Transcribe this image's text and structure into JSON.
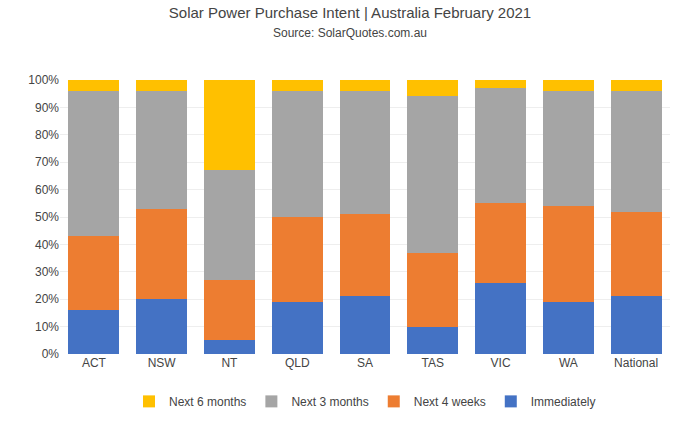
{
  "chart_data": {
    "type": "bar",
    "stacked": true,
    "title": "Solar Power Purchase Intent | Australia February 2021",
    "subtitle": "Source: SolarQuotes.com.au",
    "categories": [
      "ACT",
      "NSW",
      "NT",
      "QLD",
      "SA",
      "TAS",
      "VIC",
      "WA",
      "National"
    ],
    "series": [
      {
        "name": "Immediately",
        "color": "#4472C4",
        "values": [
          16,
          20,
          5,
          19,
          21,
          10,
          26,
          19,
          21
        ]
      },
      {
        "name": "Next 4 weeks",
        "color": "#ED7D31",
        "values": [
          27,
          33,
          22,
          31,
          30,
          27,
          29,
          35,
          31
        ]
      },
      {
        "name": "Next 3 months",
        "color": "#A5A5A5",
        "values": [
          53,
          43,
          40,
          46,
          45,
          57,
          42,
          42,
          44
        ]
      },
      {
        "name": "Next 6 months",
        "color": "#FFC000",
        "values": [
          4,
          4,
          33,
          4,
          4,
          6,
          3,
          4,
          4
        ]
      }
    ],
    "ylim": [
      0,
      100
    ],
    "yticks": [
      {
        "value": 0,
        "label": "0%"
      },
      {
        "value": 10,
        "label": "10%"
      },
      {
        "value": 20,
        "label": "20%"
      },
      {
        "value": 30,
        "label": "30%"
      },
      {
        "value": 40,
        "label": "40%"
      },
      {
        "value": 50,
        "label": "50%"
      },
      {
        "value": 60,
        "label": "60%"
      },
      {
        "value": 70,
        "label": "70%"
      },
      {
        "value": 80,
        "label": "80%"
      },
      {
        "value": 90,
        "label": "90%"
      },
      {
        "value": 100,
        "label": "100%"
      }
    ],
    "grid": true,
    "legend": "bottom"
  }
}
